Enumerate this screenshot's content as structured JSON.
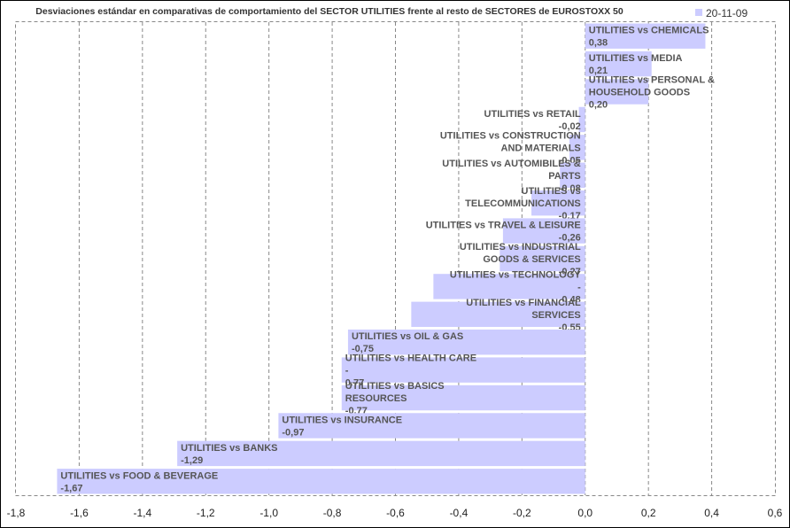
{
  "chart_data": {
    "type": "bar",
    "orientation": "horizontal",
    "title": "Desviaciones estándar en comparativas de comportamiento del SECTOR UTILITIES frente al resto de SECTORES de EUROSTOXX 50",
    "legend": {
      "series_name": "20-11-09",
      "position": "top-right"
    },
    "series_color": "#ccccff",
    "xlim": [
      -1.8,
      0.6
    ],
    "x_ticks": [
      "-1,8",
      "-1,6",
      "-1,4",
      "-1,2",
      "-1,0",
      "-0,8",
      "-0,6",
      "-0,4",
      "-0,2",
      "0,0",
      "0,2",
      "0,4",
      "0,6"
    ],
    "grid": "vertical dashed",
    "bars": [
      {
        "value": 0.38,
        "lines": [
          "UTILITIES vs CHEMICALS",
          "0,38"
        ]
      },
      {
        "value": 0.21,
        "lines": [
          "UTILITIES vs MEDIA",
          "0,21"
        ]
      },
      {
        "value": 0.2,
        "lines": [
          "UTILITIES vs PERSONAL &",
          "HOUSEHOLD GOODS",
          "0,20"
        ]
      },
      {
        "value": -0.02,
        "lines": [
          "UTILITIES vs RETAIL",
          "-0,02"
        ]
      },
      {
        "value": -0.05,
        "lines": [
          "UTILITIES vs CONSTRUCTION",
          "AND MATERIALS",
          "-0,05"
        ]
      },
      {
        "value": -0.08,
        "lines": [
          "UTILITIES vs AUTOMIBILES &",
          "PARTS",
          "-0,08"
        ]
      },
      {
        "value": -0.17,
        "lines": [
          "UTILITIES vs",
          "TELECOMMUNICATIONS",
          "-0,17"
        ]
      },
      {
        "value": -0.26,
        "lines": [
          "UTILITIES vs TRAVEL & LEISURE",
          "-0,26"
        ]
      },
      {
        "value": -0.27,
        "lines": [
          "UTILITIES vs INDUSTRIAL",
          "GOODS & SERVICES",
          "-0,27"
        ]
      },
      {
        "value": -0.48,
        "lines": [
          "UTILITIES vs TECHNOLOGY",
          "-",
          "0,48"
        ]
      },
      {
        "value": -0.55,
        "lines": [
          "UTILITIES vs FINANCIAL",
          "SERVICES",
          "-0,55"
        ]
      },
      {
        "value": -0.75,
        "lines": [
          "UTILITIES vs OIL & GAS",
          "-0,75"
        ]
      },
      {
        "value": -0.77,
        "lines": [
          "UTILITIES vs HEALTH CARE",
          "-",
          "0,77"
        ]
      },
      {
        "value": -0.77,
        "lines": [
          "UTILITIES vs BASICS",
          "RESOURCES",
          "-0,77"
        ]
      },
      {
        "value": -0.97,
        "lines": [
          "UTILITIES vs INSURANCE",
          "-0,97"
        ]
      },
      {
        "value": -1.29,
        "lines": [
          "UTILITIES vs BANKS",
          "-1,29"
        ]
      },
      {
        "value": -1.67,
        "lines": [
          "UTILITIES vs FOOD & BEVERAGE",
          "-1,67"
        ]
      }
    ]
  }
}
